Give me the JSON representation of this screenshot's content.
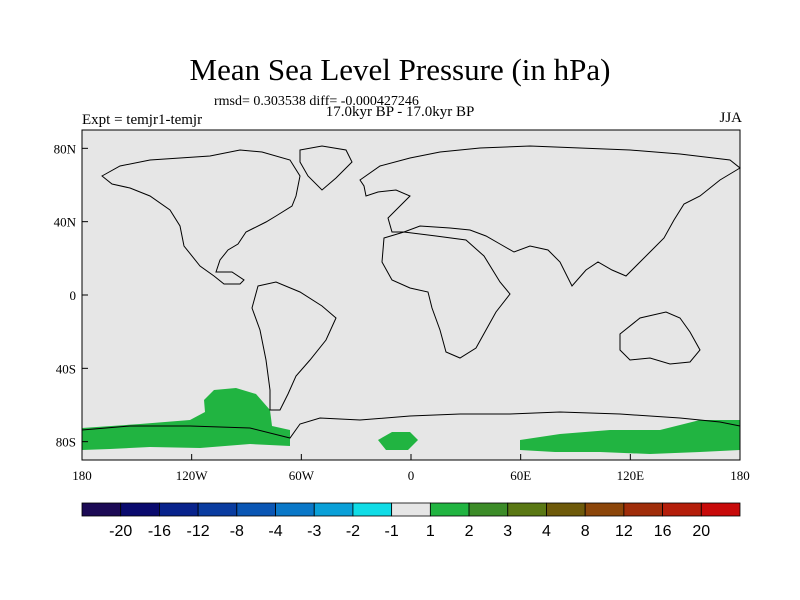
{
  "title": "Mean Sea Level Pressure (in hPa)",
  "stats": "rmsd= 0.303538 diff= -0.000427246",
  "period": "17.0kyr BP - 17.0kyr BP",
  "experiment": "Expt = temjr1-temjr",
  "season": "JJA",
  "map": {
    "lon_labels": [
      "180",
      "120W",
      "60W",
      "0",
      "60E",
      "120E",
      "180"
    ],
    "lat_labels": [
      "80N",
      "40N",
      "0",
      "40S",
      "80S"
    ],
    "background_color": "#e6e6e6",
    "coast_color": "#000000"
  },
  "colorbar": {
    "labels": [
      "-20",
      "-16",
      "-12",
      "-8",
      "-4",
      "-3",
      "-2",
      "-1",
      "1",
      "2",
      "3",
      "4",
      "8",
      "12",
      "16",
      "20"
    ],
    "colors": [
      "#1c0a55",
      "#0a0a6e",
      "#08238c",
      "#0a3ca0",
      "#0a56b4",
      "#0a78c8",
      "#0aa0d8",
      "#10dce6",
      "#e6e6e6",
      "#21b441",
      "#3c8c28",
      "#5a7814",
      "#6e5a0a",
      "#8c460a",
      "#a02d0a",
      "#b41e0a",
      "#c80a0a"
    ]
  }
}
